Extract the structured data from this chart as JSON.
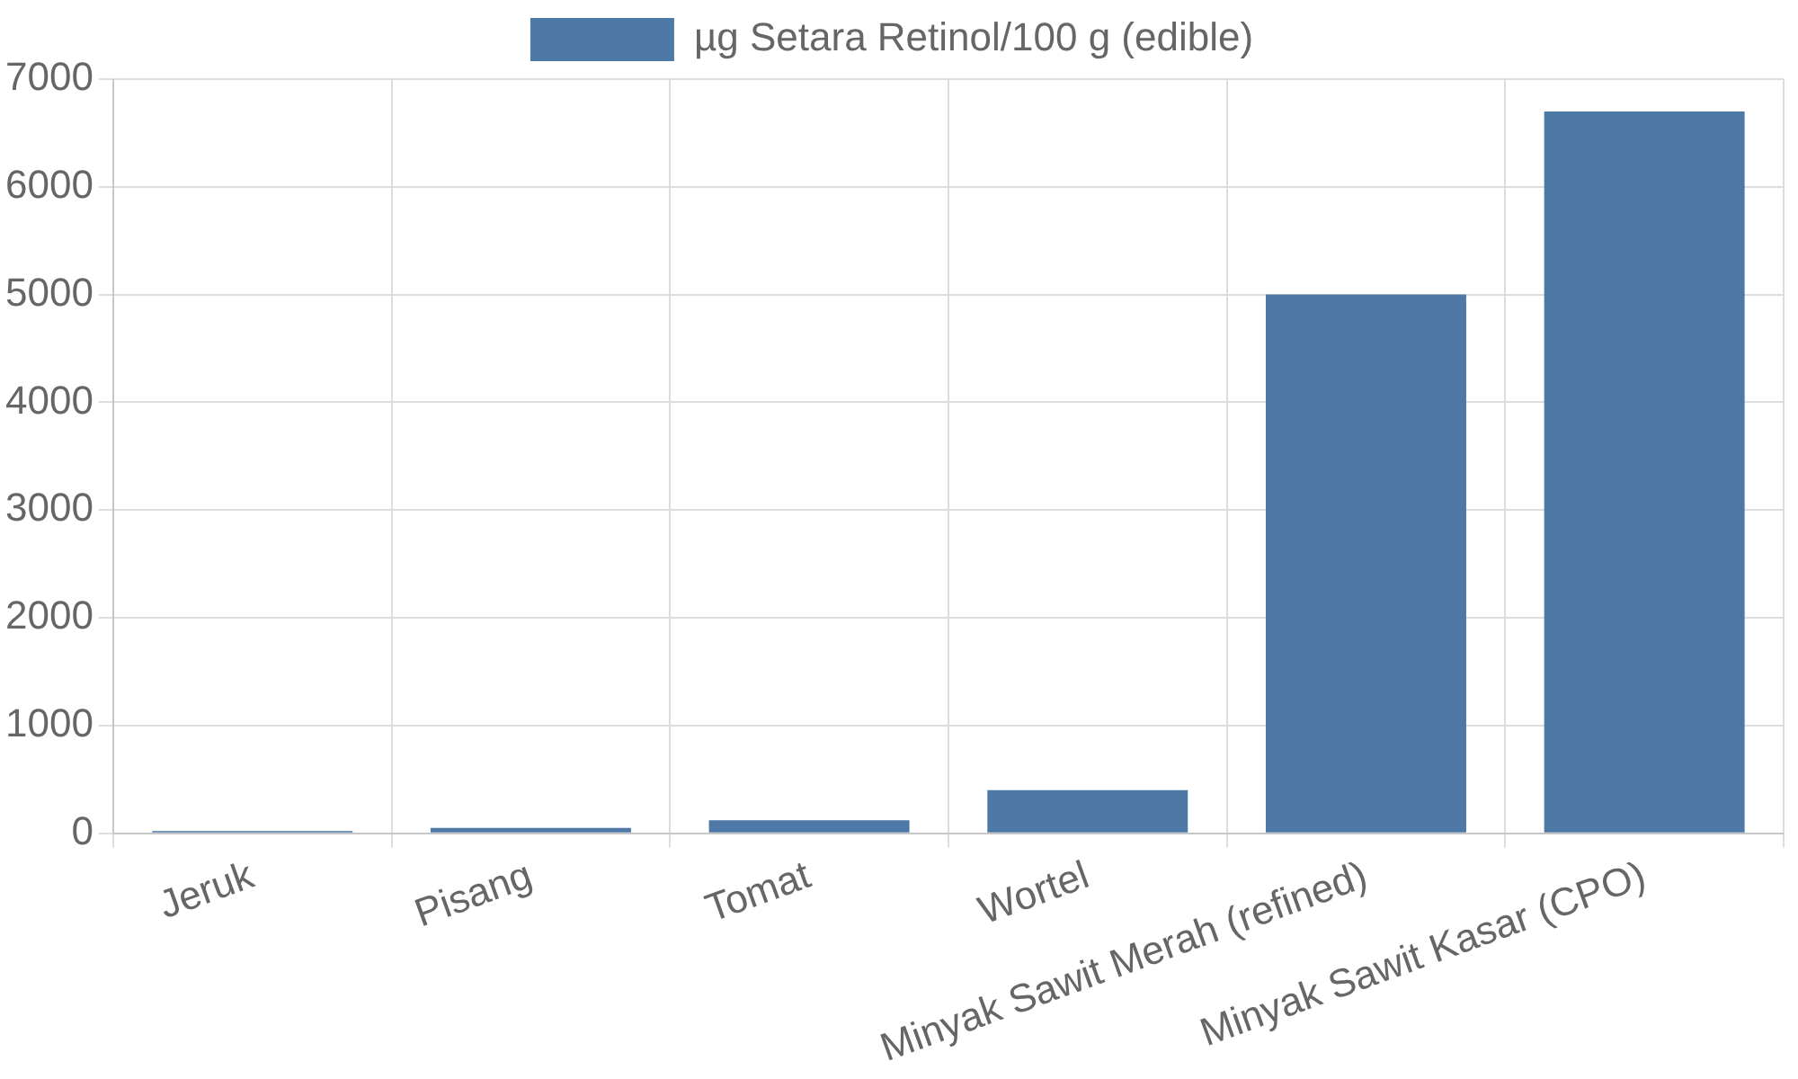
{
  "chart_data": {
    "type": "bar",
    "categories": [
      "Jeruk",
      "Pisang",
      "Tomat",
      "Wortel",
      "Minyak Sawit Merah (refined)",
      "Minyak Sawit Kasar (CPO)"
    ],
    "series": [
      {
        "name": "µg Setara Retinol/100 g (edible)",
        "color": "#4e79a7",
        "values": [
          20,
          50,
          120,
          400,
          5000,
          6700
        ]
      }
    ],
    "ylim": [
      0,
      7000
    ],
    "yticks": [
      0,
      1000,
      2000,
      3000,
      4000,
      5000,
      6000,
      7000
    ],
    "grid": true,
    "legend": "top"
  }
}
